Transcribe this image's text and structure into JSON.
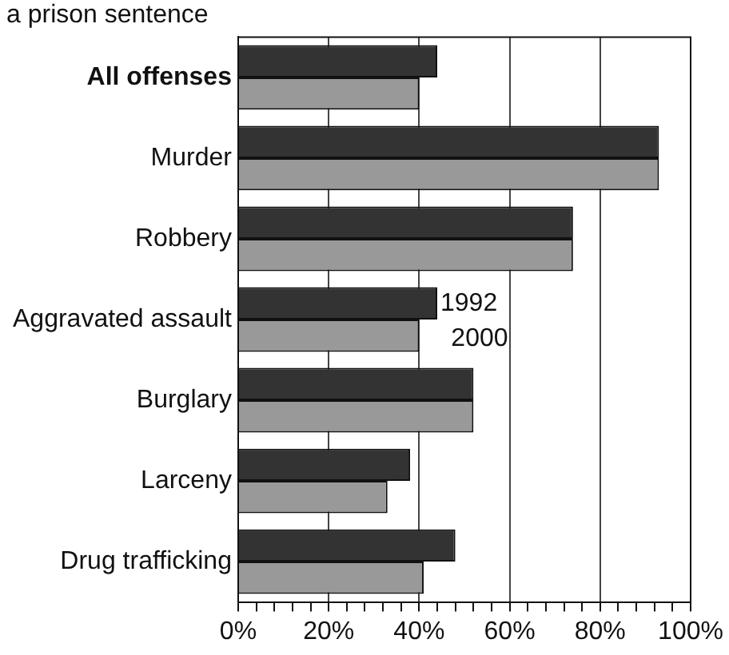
{
  "chart_data": {
    "type": "bar",
    "orientation": "horizontal",
    "title": "a prison sentence",
    "categories": [
      "All offenses",
      "Murder",
      "Robbery",
      "Aggravated assault",
      "Burglary",
      "Larceny",
      "Drug trafficking"
    ],
    "series": [
      {
        "name": "1992",
        "color": "#333333",
        "values": [
          44,
          93,
          74,
          44,
          52,
          38,
          48
        ]
      },
      {
        "name": "2000",
        "color": "#999999",
        "values": [
          40,
          93,
          74,
          40,
          52,
          33,
          41
        ]
      }
    ],
    "xlim": [
      0,
      100
    ],
    "xticks": [
      {
        "value": 0,
        "label": "0%"
      },
      {
        "value": 4,
        "label": null
      },
      {
        "value": 8,
        "label": null
      },
      {
        "value": 12,
        "label": null
      },
      {
        "value": 16,
        "label": null
      },
      {
        "value": 20,
        "label": "20%"
      },
      {
        "value": 24,
        "label": null
      },
      {
        "value": 28,
        "label": null
      },
      {
        "value": 32,
        "label": null
      },
      {
        "value": 36,
        "label": null
      },
      {
        "value": 40,
        "label": "40%"
      },
      {
        "value": 44,
        "label": null
      },
      {
        "value": 48,
        "label": null
      },
      {
        "value": 52,
        "label": null
      },
      {
        "value": 56,
        "label": null
      },
      {
        "value": 60,
        "label": "60%"
      },
      {
        "value": 64,
        "label": null
      },
      {
        "value": 68,
        "label": null
      },
      {
        "value": 72,
        "label": null
      },
      {
        "value": 76,
        "label": null
      },
      {
        "value": 80,
        "label": "80%"
      },
      {
        "value": 84,
        "label": null
      },
      {
        "value": 88,
        "label": null
      },
      {
        "value": 92,
        "label": null
      },
      {
        "value": 96,
        "label": null
      },
      {
        "value": 100,
        "label": "100%"
      }
    ],
    "grid": "x",
    "legend": false
  }
}
